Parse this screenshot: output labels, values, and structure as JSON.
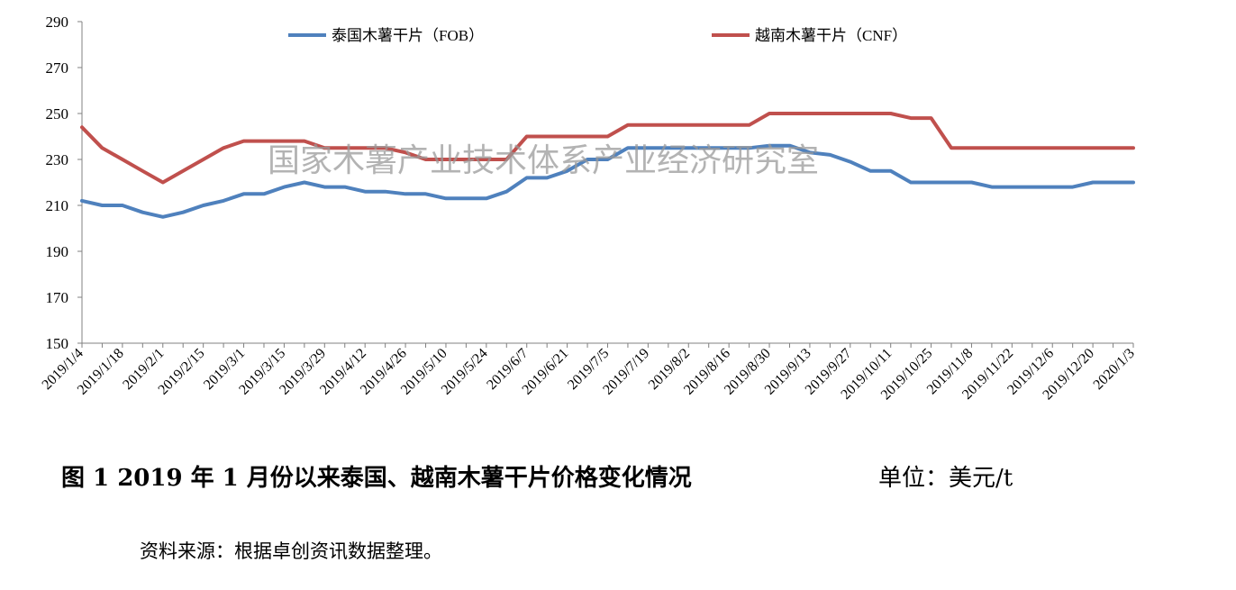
{
  "chart_data": {
    "type": "line",
    "x": [
      "2019/1/4",
      "2019/1/11",
      "2019/1/18",
      "2019/1/25",
      "2019/2/1",
      "2019/2/8",
      "2019/2/15",
      "2019/2/22",
      "2019/3/1",
      "2019/3/8",
      "2019/3/15",
      "2019/3/22",
      "2019/3/29",
      "2019/4/5",
      "2019/4/12",
      "2019/4/19",
      "2019/4/26",
      "2019/5/3",
      "2019/5/10",
      "2019/5/17",
      "2019/5/24",
      "2019/5/31",
      "2019/6/7",
      "2019/6/14",
      "2019/6/21",
      "2019/6/28",
      "2019/7/5",
      "2019/7/12",
      "2019/7/19",
      "2019/7/26",
      "2019/8/2",
      "2019/8/9",
      "2019/8/16",
      "2019/8/23",
      "2019/8/30",
      "2019/9/6",
      "2019/9/13",
      "2019/9/20",
      "2019/9/27",
      "2019/10/4",
      "2019/10/11",
      "2019/10/18",
      "2019/10/25",
      "2019/11/1",
      "2019/11/8",
      "2019/11/15",
      "2019/11/22",
      "2019/11/29",
      "2019/12/6",
      "2019/12/13",
      "2019/12/20",
      "2019/12/27",
      "2020/1/3"
    ],
    "tick_labels": [
      "2019/1/4",
      "2019/1/18",
      "2019/2/1",
      "2019/2/15",
      "2019/3/1",
      "2019/3/15",
      "2019/3/29",
      "2019/4/12",
      "2019/4/26",
      "2019/5/10",
      "2019/5/24",
      "2019/6/7",
      "2019/6/21",
      "2019/7/5",
      "2019/7/19",
      "2019/8/2",
      "2019/8/16",
      "2019/8/30",
      "2019/9/13",
      "2019/9/27",
      "2019/10/11",
      "2019/10/25",
      "2019/11/8",
      "2019/11/22",
      "2019/12/6",
      "2019/12/20",
      "2020/1/3"
    ],
    "yticks": [
      150,
      170,
      190,
      210,
      230,
      250,
      270,
      290
    ],
    "ylim": [
      150,
      290
    ],
    "grid": false,
    "legend_position": "top",
    "series": [
      {
        "name": "泰国木薯干片（FOB）",
        "color": "#4F81BD",
        "values": [
          212,
          210,
          210,
          207,
          205,
          207,
          210,
          212,
          215,
          215,
          218,
          220,
          218,
          218,
          216,
          216,
          215,
          215,
          213,
          213,
          213,
          216,
          222,
          222,
          225,
          230,
          230,
          235,
          235,
          235,
          235,
          235,
          235,
          235,
          236,
          236,
          233,
          232,
          229,
          225,
          225,
          220,
          220,
          220,
          220,
          218,
          218,
          218,
          218,
          218,
          220,
          220,
          220
        ]
      },
      {
        "name": "越南木薯干片（CNF）",
        "color": "#C0504D",
        "values": [
          244,
          235,
          230,
          225,
          220,
          225,
          230,
          235,
          238,
          238,
          238,
          238,
          235,
          235,
          235,
          235,
          233,
          230,
          230,
          230,
          230,
          230,
          240,
          240,
          240,
          240,
          240,
          245,
          245,
          245,
          245,
          245,
          245,
          245,
          250,
          250,
          250,
          250,
          250,
          250,
          250,
          248,
          248,
          235,
          235,
          235,
          235,
          235,
          235,
          235,
          235,
          235,
          235
        ]
      }
    ]
  },
  "watermark": "国家木薯产业技术体系产业经济研究室",
  "caption": "图 1    2019 年 1 月份以来泰国、越南木薯干片价格变化情况",
  "unit": "单位：美元/t",
  "source": "资料来源：根据卓创资讯数据整理。"
}
